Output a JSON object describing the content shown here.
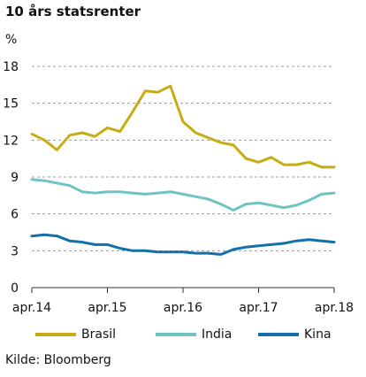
{
  "chart_data": {
    "type": "line",
    "title": "10 års statsrenter",
    "unit": "%",
    "source": "Kilde: Bloomberg",
    "x_tick_labels": [
      "apr.14",
      "apr.15",
      "apr.16",
      "apr.17",
      "apr.18"
    ],
    "y_ticks": [
      0,
      3,
      6,
      9,
      12,
      15,
      18
    ],
    "ylim": [
      0,
      18
    ],
    "grid": "horizontal dashed",
    "legend_position": "bottom",
    "x": [
      "2014-04",
      "2014-06",
      "2014-08",
      "2014-10",
      "2014-12",
      "2015-02",
      "2015-04",
      "2015-06",
      "2015-08",
      "2015-10",
      "2015-12",
      "2016-02",
      "2016-04",
      "2016-06",
      "2016-08",
      "2016-10",
      "2016-12",
      "2017-02",
      "2017-04",
      "2017-06",
      "2017-08",
      "2017-10",
      "2017-12",
      "2018-02",
      "2018-04"
    ],
    "series": [
      {
        "name": "Brasil",
        "color": "#c8ac14",
        "values": [
          12.5,
          12.0,
          11.2,
          12.4,
          12.6,
          12.3,
          13.0,
          12.7,
          14.3,
          16.0,
          15.9,
          16.4,
          13.5,
          12.6,
          12.2,
          11.8,
          11.6,
          10.5,
          10.2,
          10.6,
          10.0,
          10.0,
          10.2,
          9.8,
          9.8
        ]
      },
      {
        "name": "India",
        "color": "#6ec4c0",
        "values": [
          8.8,
          8.7,
          8.5,
          8.3,
          7.8,
          7.7,
          7.8,
          7.8,
          7.7,
          7.6,
          7.7,
          7.8,
          7.6,
          7.4,
          7.2,
          6.8,
          6.3,
          6.8,
          6.9,
          6.7,
          6.5,
          6.7,
          7.1,
          7.6,
          7.7
        ]
      },
      {
        "name": "Kina",
        "color": "#1370a8",
        "values": [
          4.2,
          4.3,
          4.2,
          3.8,
          3.7,
          3.5,
          3.5,
          3.2,
          3.0,
          3.0,
          2.9,
          2.9,
          2.9,
          2.8,
          2.8,
          2.7,
          3.1,
          3.3,
          3.4,
          3.5,
          3.6,
          3.8,
          3.9,
          3.8,
          3.7
        ]
      }
    ]
  }
}
